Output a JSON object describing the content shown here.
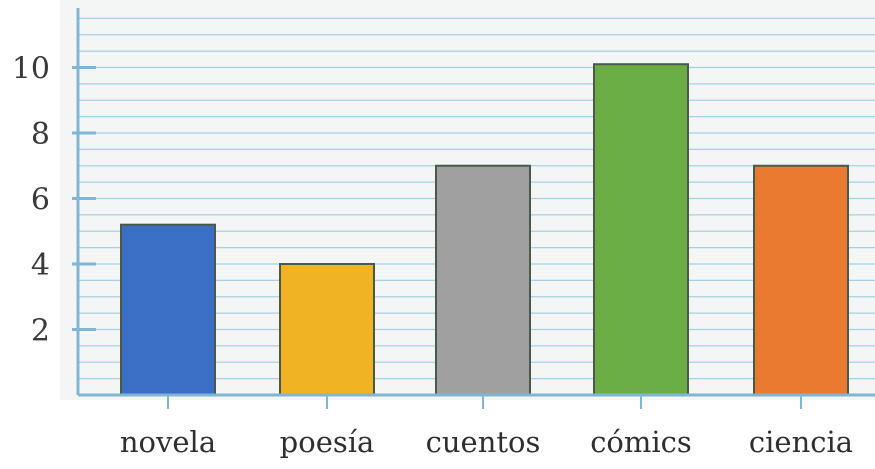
{
  "chart_data": {
    "type": "bar",
    "title": "",
    "xlabel": "",
    "ylabel": "",
    "categories": [
      "novela",
      "poesía",
      "cuentos",
      "cómics",
      "ciencia"
    ],
    "values": [
      5.2,
      4,
      7,
      10.1,
      7
    ],
    "ylim": [
      0,
      11.5
    ],
    "yticks": [
      2,
      4,
      6,
      8,
      10
    ],
    "grid": true,
    "legend": "none",
    "bar_colors": [
      "#3b6fc6",
      "#f0b323",
      "#a0a0a0",
      "#6aad45",
      "#ea7a2f"
    ],
    "bar_outline_color": "#4a5a4a",
    "axis_color": "#7fb6d3",
    "grid_color": "#a8d0e4",
    "background_color": "#f4f6f6"
  }
}
